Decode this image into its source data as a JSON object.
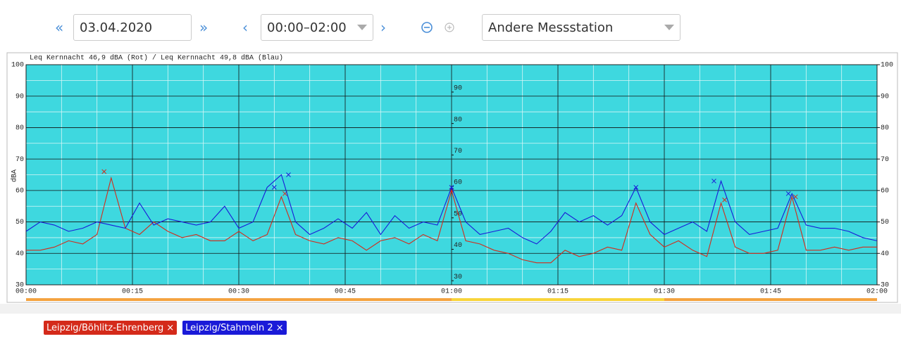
{
  "controls": {
    "prev_day": "«",
    "date": "03.04.2020",
    "next_day": "»",
    "prev_time": "‹",
    "time_range": "00:00–02:00",
    "next_time": "›",
    "station": "Andere Messstation"
  },
  "chart_data": {
    "type": "line",
    "title": "Leq Kernnacht 46,9 dBA (Rot) / Leq Kernnacht 49,8 dBA (Blau)",
    "y_label": "dBA",
    "x": [
      0,
      2,
      4,
      6,
      8,
      10,
      12,
      14,
      16,
      18,
      20,
      22,
      24,
      26,
      28,
      30,
      32,
      34,
      36,
      38,
      40,
      42,
      44,
      46,
      48,
      50,
      52,
      54,
      56,
      58,
      60,
      62,
      64,
      66,
      68,
      70,
      72,
      74,
      76,
      78,
      80,
      82,
      84,
      86,
      88,
      90,
      92,
      94,
      96,
      98,
      100,
      102,
      104,
      106,
      108,
      110,
      112,
      114,
      116,
      118,
      120
    ],
    "xlim": [
      0,
      120
    ],
    "xticks": [
      {
        "value": 0,
        "label": "00:00"
      },
      {
        "value": 15,
        "label": "00:15"
      },
      {
        "value": 30,
        "label": "00:30"
      },
      {
        "value": 45,
        "label": "00:45"
      },
      {
        "value": 60,
        "label": "01:00"
      },
      {
        "value": 75,
        "label": "01:15"
      },
      {
        "value": 90,
        "label": "01:30"
      },
      {
        "value": 105,
        "label": "01:45"
      },
      {
        "value": 120,
        "label": "02:00"
      }
    ],
    "ylim": [
      30,
      100
    ],
    "yticks": [
      30,
      40,
      50,
      60,
      70,
      80,
      90,
      100
    ],
    "y2lim": [
      30,
      100
    ],
    "y2ticks": [
      30,
      40,
      50,
      60,
      70,
      80,
      90,
      100
    ],
    "y3lim": [
      28.7,
      98.7
    ],
    "y3ticks": [
      30,
      40,
      50,
      60,
      70,
      80,
      90
    ],
    "grid": true,
    "legend_remove": "×",
    "bands": [
      {
        "from": 0,
        "to": 60,
        "color": "#f4a340"
      },
      {
        "from": 60,
        "to": 90,
        "color": "#f8d43a"
      },
      {
        "from": 90,
        "to": 120,
        "color": "#f4a340"
      }
    ],
    "series": [
      {
        "name": "Leipzig/Böhlitz-Ehrenberg",
        "color": "#d42a1a",
        "values": [
          41,
          41,
          42,
          44,
          43,
          46,
          64,
          48,
          46,
          50,
          47,
          45,
          46,
          44,
          44,
          47,
          44,
          46,
          58,
          46,
          44,
          43,
          45,
          44,
          41,
          44,
          45,
          43,
          46,
          44,
          60,
          44,
          43,
          41,
          40,
          38,
          37,
          37,
          41,
          39,
          40,
          42,
          41,
          56,
          46,
          42,
          44,
          41,
          39,
          56,
          42,
          40,
          40,
          41,
          58,
          41,
          41,
          42,
          41,
          42,
          42
        ],
        "markers": {
          "x": [
            11,
            36.5,
            60,
            98.5,
            108.5
          ],
          "values": [
            66,
            59,
            60,
            57,
            58
          ]
        }
      },
      {
        "name": "Leipzig/Stahmeln 2",
        "color": "#1a1ad8",
        "values": [
          47,
          50,
          49,
          47,
          48,
          50,
          49,
          48,
          56,
          49,
          51,
          50,
          49,
          50,
          55,
          48,
          50,
          61,
          65,
          50,
          46,
          48,
          51,
          48,
          53,
          46,
          52,
          48,
          50,
          49,
          61,
          50,
          46,
          47,
          48,
          45,
          43,
          47,
          53,
          50,
          52,
          49,
          52,
          61,
          50,
          46,
          48,
          50,
          47,
          63,
          50,
          46,
          47,
          48,
          59,
          49,
          48,
          48,
          47,
          45,
          44
        ],
        "markers": {
          "x": [
            35,
            37,
            60,
            86,
            97,
            107.5
          ],
          "values": [
            61,
            65,
            61,
            61,
            63,
            59
          ]
        }
      }
    ]
  }
}
